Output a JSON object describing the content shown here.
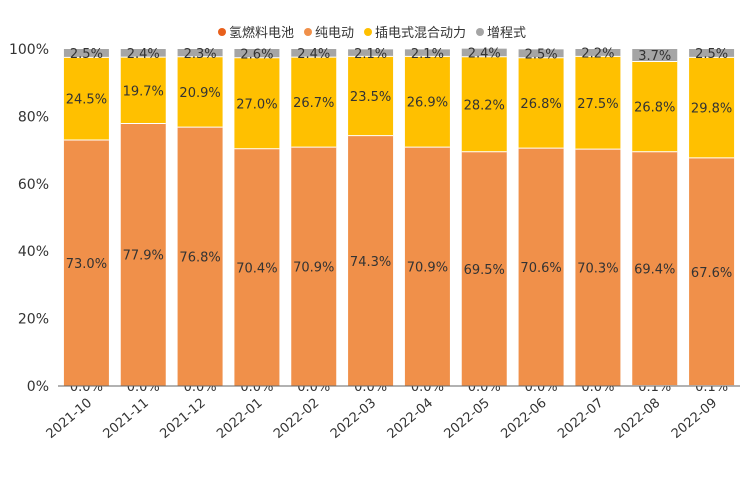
{
  "chart_data": {
    "type": "bar",
    "stacked": true,
    "percent": true,
    "categories": [
      "2021-10",
      "2021-11",
      "2021-12",
      "2022-01",
      "2022-02",
      "2022-03",
      "2022-04",
      "2022-05",
      "2022-06",
      "2022-07",
      "2022-08",
      "2022-09"
    ],
    "ylim": [
      0,
      100
    ],
    "yticks": [
      "0%",
      "20%",
      "40%",
      "60%",
      "80%",
      "100%"
    ],
    "legend_position": "top",
    "series": [
      {
        "name": "氢燃料电池",
        "color": "#E8601C",
        "values": [
          0.0,
          0.0,
          0.0,
          0.0,
          0.0,
          0.0,
          0.0,
          0.0,
          0.0,
          0.0,
          0.1,
          0.1
        ],
        "labels": [
          "0.0%",
          "0.0%",
          "0.0%",
          "0.0%",
          "0.0%",
          "0.0%",
          "0.0%",
          "0.0%",
          "0.0%",
          "0.0%",
          "0.1%",
          "0.1%"
        ]
      },
      {
        "name": "纯电动",
        "color": "#F0904A",
        "values": [
          73.0,
          77.9,
          76.8,
          70.4,
          70.9,
          74.3,
          70.9,
          69.5,
          70.6,
          70.3,
          69.4,
          67.6
        ],
        "labels": [
          "73.0%",
          "77.9%",
          "76.8%",
          "70.4%",
          "70.9%",
          "74.3%",
          "70.9%",
          "69.5%",
          "70.6%",
          "70.3%",
          "69.4%",
          "67.6%"
        ]
      },
      {
        "name": "插电式混合动力",
        "color": "#FFC000",
        "values": [
          24.5,
          19.7,
          20.9,
          27.0,
          26.7,
          23.5,
          26.9,
          28.2,
          26.8,
          27.5,
          26.8,
          29.8
        ],
        "labels": [
          "24.5%",
          "19.7%",
          "20.9%",
          "27.0%",
          "26.7%",
          "23.5%",
          "26.9%",
          "28.2%",
          "26.8%",
          "27.5%",
          "26.8%",
          "29.8%"
        ]
      },
      {
        "name": "增程式",
        "color": "#A5A5A5",
        "values": [
          2.5,
          2.4,
          2.3,
          2.6,
          2.4,
          2.1,
          2.1,
          2.4,
          2.5,
          2.2,
          3.7,
          2.5
        ],
        "labels": [
          "2.5%",
          "2.4%",
          "2.3%",
          "2.6%",
          "2.4%",
          "2.1%",
          "2.1%",
          "2.4%",
          "2.5%",
          "2.2%",
          "3.7%",
          "2.5%"
        ]
      }
    ]
  }
}
